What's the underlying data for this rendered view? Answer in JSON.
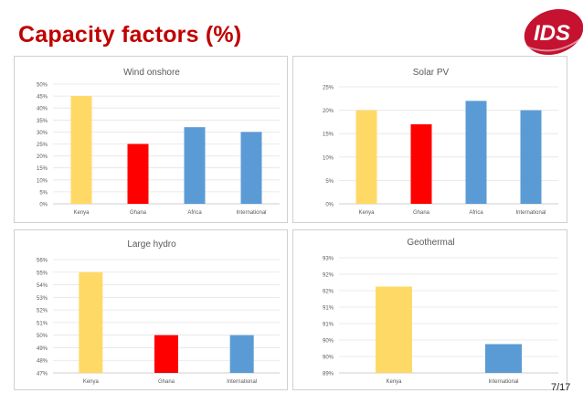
{
  "slide": {
    "title": "Capacity factors (%)",
    "page": "7/17"
  },
  "logo": {
    "text": "IDS",
    "color": "#c41230"
  },
  "colors": {
    "kenya": "#ffd966",
    "ghana": "#ff0000",
    "africa": "#5b9bd5",
    "international": "#5b9bd5"
  },
  "chart_data": [
    {
      "type": "bar",
      "title": "Wind onshore",
      "categories": [
        "Kenya",
        "Ghana",
        "Africa",
        "International"
      ],
      "values": [
        45,
        25,
        32,
        30
      ],
      "colors": [
        "#ffd966",
        "#ff0000",
        "#5b9bd5",
        "#5b9bd5"
      ],
      "ylim": [
        0,
        50
      ],
      "yticks": [
        "0%",
        "5%",
        "10%",
        "15%",
        "20%",
        "25%",
        "30%",
        "35%",
        "40%",
        "45%",
        "50%"
      ],
      "grid": true
    },
    {
      "type": "bar",
      "title": "Solar PV",
      "categories": [
        "Kenya",
        "Ghana",
        "Africa",
        "International"
      ],
      "values": [
        20,
        17,
        22,
        20
      ],
      "colors": [
        "#ffd966",
        "#ff0000",
        "#5b9bd5",
        "#5b9bd5"
      ],
      "ylim": [
        0,
        25
      ],
      "yticks": [
        "0%",
        "5%",
        "10%",
        "15%",
        "20%",
        "25%"
      ],
      "grid": true
    },
    {
      "type": "bar",
      "title": "Large hydro",
      "categories": [
        "Kenya",
        "Ghana",
        "International"
      ],
      "values": [
        55,
        50,
        50
      ],
      "colors": [
        "#ffd966",
        "#ff0000",
        "#5b9bd5"
      ],
      "ylim": [
        47,
        56
      ],
      "yticks": [
        "47%",
        "48%",
        "49%",
        "50%",
        "51%",
        "52%",
        "53%",
        "54%",
        "55%",
        "56%"
      ],
      "grid": true
    },
    {
      "type": "bar",
      "title": "Geothermal",
      "categories": [
        "Kenya",
        "International"
      ],
      "values": [
        92,
        90
      ],
      "colors": [
        "#ffd966",
        "#5b9bd5"
      ],
      "ylim": [
        89,
        93
      ],
      "yticks": [
        "89%",
        "90%",
        "90%",
        "91%",
        "91%",
        "92%",
        "92%",
        "93%"
      ],
      "grid": true
    }
  ]
}
